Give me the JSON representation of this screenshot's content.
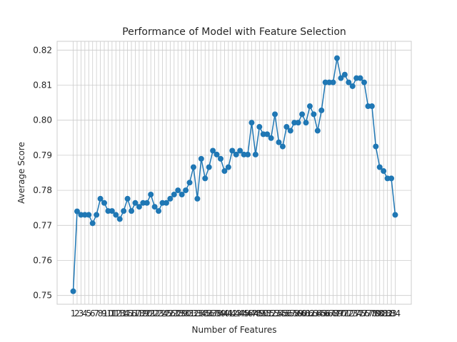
{
  "chart_data": {
    "type": "line",
    "title": "Performance of Model with Feature Selection",
    "xlabel": "Number of Features",
    "ylabel": "Average Score",
    "ylim": [
      0.7475,
      0.8225
    ],
    "yticks": [
      0.75,
      0.76,
      0.77,
      0.78,
      0.79,
      0.8,
      0.81,
      0.82
    ],
    "ytick_labels": [
      "0.75",
      "0.76",
      "0.77",
      "0.78",
      "0.79",
      "0.80",
      "0.81",
      "0.82"
    ],
    "grid": true,
    "marker": "circle",
    "color": "#1f77b4",
    "x": [
      1,
      2,
      3,
      4,
      5,
      6,
      7,
      8,
      9,
      10,
      11,
      12,
      13,
      14,
      15,
      16,
      17,
      18,
      19,
      20,
      21,
      22,
      23,
      24,
      25,
      26,
      27,
      28,
      29,
      30,
      31,
      32,
      33,
      34,
      35,
      36,
      37,
      38,
      39,
      40,
      41,
      42,
      43,
      44,
      45,
      46,
      47,
      48,
      49,
      50,
      51,
      52,
      53,
      54,
      55,
      56,
      57,
      58,
      59,
      60,
      61,
      62,
      63,
      64,
      65,
      66,
      67,
      68,
      69,
      70,
      71,
      72,
      73,
      74,
      75,
      76,
      77,
      78,
      79,
      80,
      81,
      82,
      83,
      84
    ],
    "values": [
      0.7512,
      0.774,
      0.773,
      0.773,
      0.773,
      0.7706,
      0.773,
      0.7776,
      0.7764,
      0.7741,
      0.7741,
      0.773,
      0.7718,
      0.7741,
      0.7776,
      0.7741,
      0.7764,
      0.7753,
      0.7764,
      0.7764,
      0.7788,
      0.7753,
      0.7741,
      0.7764,
      0.7764,
      0.7776,
      0.7788,
      0.78,
      0.7788,
      0.78,
      0.7822,
      0.7866,
      0.7776,
      0.789,
      0.7834,
      0.7866,
      0.7913,
      0.7902,
      0.789,
      0.7855,
      0.7866,
      0.7913,
      0.7902,
      0.7913,
      0.7902,
      0.7902,
      0.7993,
      0.7902,
      0.7981,
      0.796,
      0.796,
      0.7949,
      0.8017,
      0.7937,
      0.7925,
      0.7981,
      0.797,
      0.7993,
      0.7993,
      0.8017,
      0.7993,
      0.804,
      0.8017,
      0.797,
      0.8028,
      0.8108,
      0.8108,
      0.8108,
      0.8177,
      0.812,
      0.813,
      0.8108,
      0.8097,
      0.812,
      0.812,
      0.8108,
      0.804,
      0.804,
      0.7925,
      0.7866,
      0.7855,
      0.7834,
      0.7834,
      0.773
    ]
  }
}
